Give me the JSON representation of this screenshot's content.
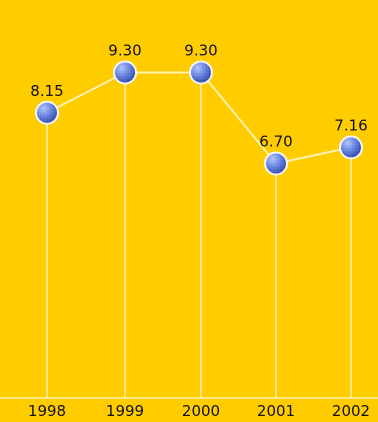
{
  "chart_data": {
    "type": "line",
    "categories": [
      "1998",
      "1999",
      "2000",
      "2001",
      "2002"
    ],
    "values": [
      8.15,
      9.3,
      9.3,
      6.7,
      7.16
    ],
    "value_labels": [
      "8.15",
      "9.30",
      "9.30",
      "6.70",
      "7.16"
    ],
    "ylim": [
      0,
      10.4
    ],
    "grid": false,
    "drop_lines": true,
    "colors": {
      "background": "#FFCC00",
      "line": "#FFF2B0",
      "marker": "#5A78D8",
      "marker_edge": "#F5F5F5",
      "text": "#111111"
    }
  }
}
